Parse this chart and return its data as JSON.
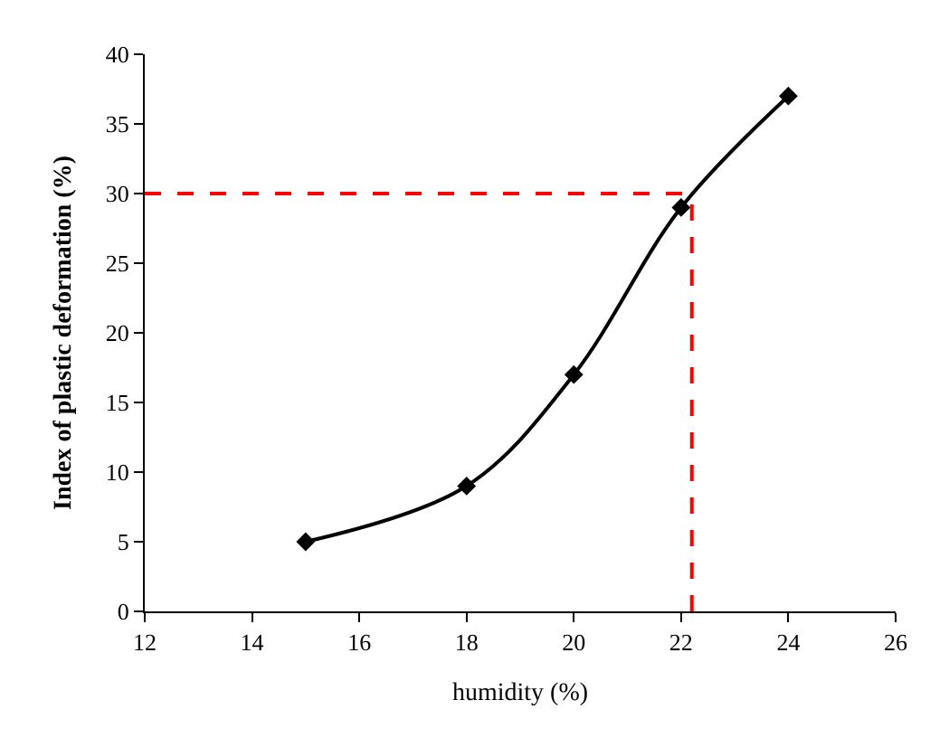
{
  "chart_data": {
    "type": "line",
    "xlabel": "humidity (%)",
    "ylabel": "Index of plastic deformation (%)",
    "x": [
      15,
      18,
      20,
      22,
      24
    ],
    "series": [
      {
        "color": "#000000",
        "values": [
          5,
          9,
          17,
          29,
          37
        ]
      }
    ],
    "xlim": [
      12,
      26
    ],
    "xticks": [
      12,
      14,
      16,
      18,
      20,
      22,
      24,
      26
    ],
    "ylim": [
      0,
      40
    ],
    "yticks": [
      0,
      5,
      10,
      15,
      20,
      25,
      30,
      35,
      40
    ],
    "legend": false,
    "marker": "diamond",
    "line_style": "solid",
    "ref_lines": [
      {
        "axis": "y",
        "value": 30,
        "color": "#ff0000",
        "line_style": "dashed"
      },
      {
        "axis": "x",
        "value": 22.2,
        "color": "#ff0000",
        "line_style": "dashed"
      }
    ]
  }
}
